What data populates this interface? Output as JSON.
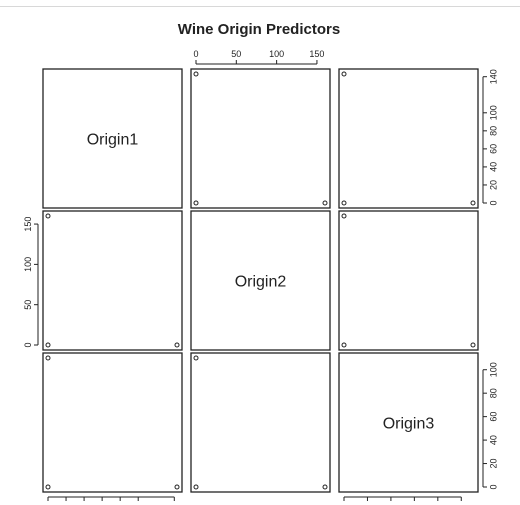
{
  "chart_data": {
    "type": "scatter",
    "title": "Wine Origin Predictors",
    "variables": [
      "Origin1",
      "Origin2",
      "Origin3"
    ],
    "variable_ranges": {
      "Origin1": [
        0,
        143
      ],
      "Origin2": [
        0,
        160
      ],
      "Origin3": [
        0,
        110
      ]
    },
    "ticks": {
      "Origin1": [
        0,
        20,
        40,
        60,
        80,
        100,
        140
      ],
      "Origin2": [
        0,
        50,
        100,
        150
      ],
      "Origin3": [
        0,
        20,
        40,
        60,
        80,
        100
      ]
    },
    "points": [
      {
        "Origin1": 143,
        "Origin2": 0,
        "Origin3": 0
      },
      {
        "Origin1": 0,
        "Origin2": 160,
        "Origin3": 0
      },
      {
        "Origin1": 0,
        "Origin2": 0,
        "Origin3": 110
      }
    ],
    "grid": false,
    "legend": "none"
  }
}
